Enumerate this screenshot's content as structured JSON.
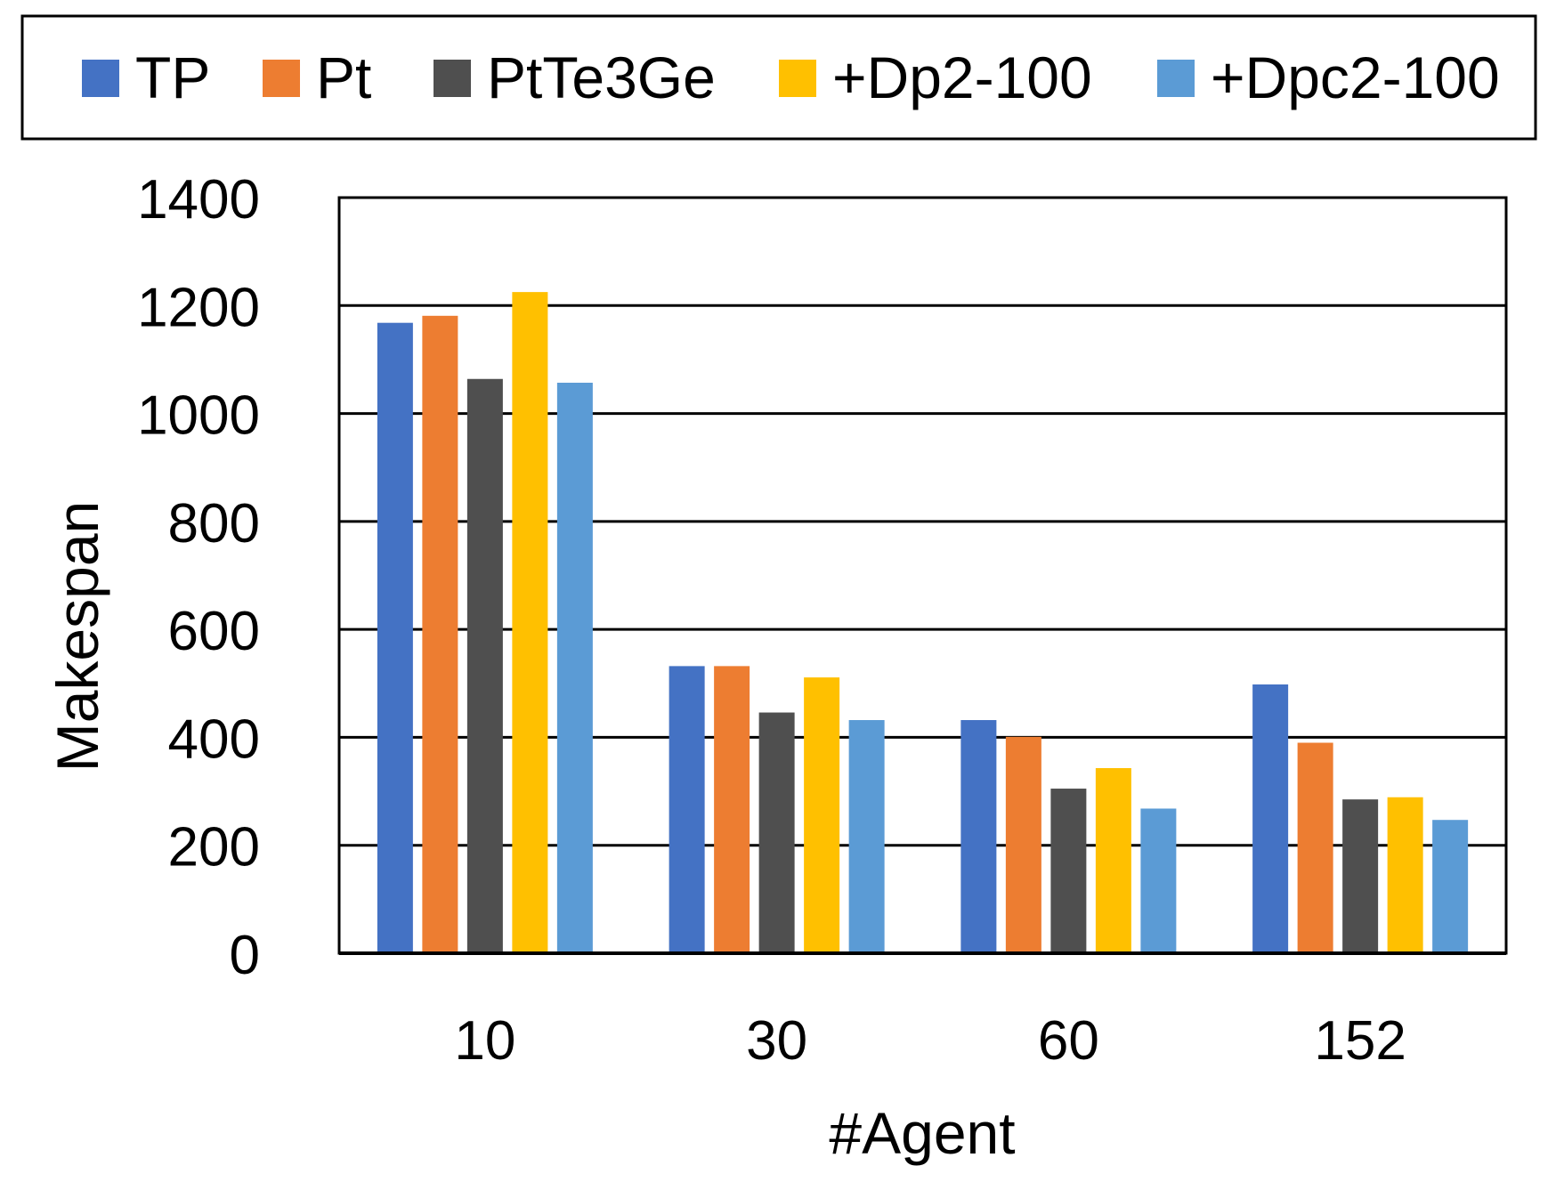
{
  "chart_data": {
    "type": "bar",
    "title": "",
    "xlabel": "#Agent",
    "ylabel": "Makespan",
    "categories": [
      "10",
      "30",
      "60",
      "152"
    ],
    "ylim": [
      0,
      1400
    ],
    "yticks": [
      0,
      200,
      400,
      600,
      800,
      1000,
      1200,
      1400
    ],
    "ytick_labels": [
      "0",
      "200",
      "400",
      "600",
      "800",
      "1000",
      "1200",
      "1400"
    ],
    "grid": true,
    "legend_position": "top",
    "series": [
      {
        "name": "TP",
        "color": "#4472C4",
        "values": [
          1168,
          532,
          432,
          498
        ]
      },
      {
        "name": "Pt",
        "color": "#ED7D31",
        "values": [
          1181,
          532,
          401,
          390
        ]
      },
      {
        "name": "PtTe3Ge",
        "color": "#4F4F4F",
        "values": [
          1064,
          446,
          305,
          285
        ]
      },
      {
        "name": "+Dp2-100",
        "color": "#FFC000",
        "values": [
          1225,
          511,
          343,
          289
        ]
      },
      {
        "name": "+Dpc2-100",
        "color": "#5B9BD5",
        "values": [
          1057,
          432,
          268,
          247
        ]
      }
    ]
  }
}
